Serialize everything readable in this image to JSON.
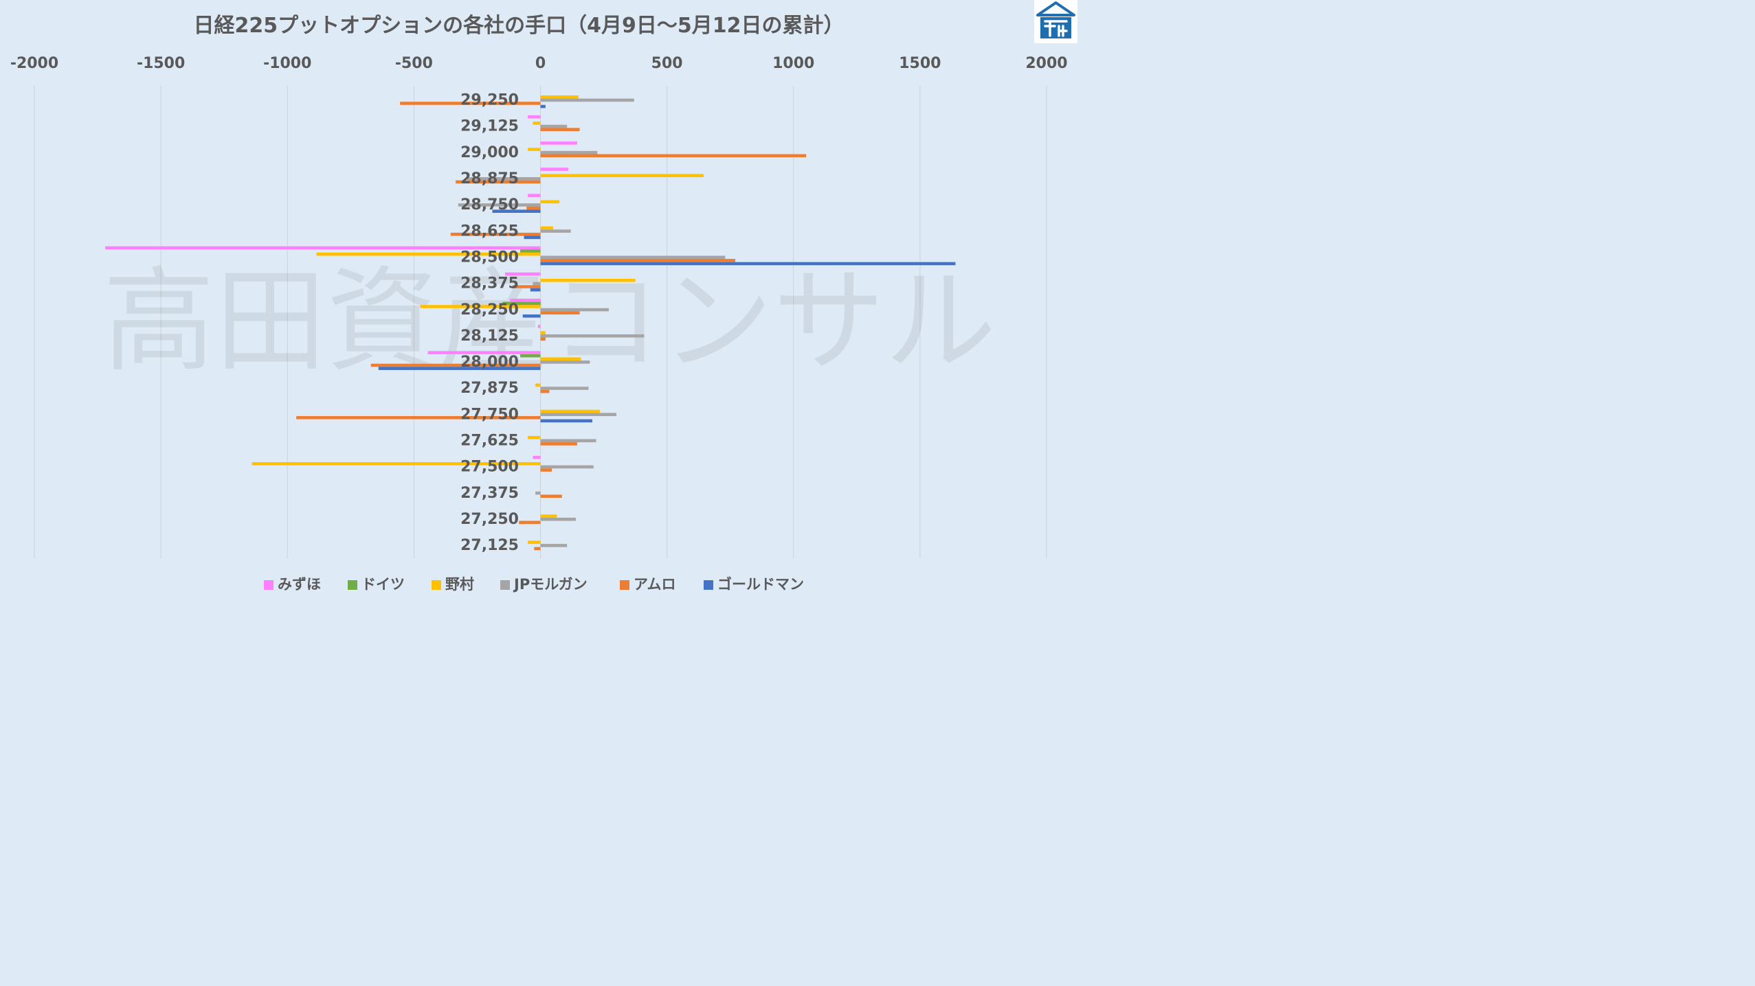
{
  "chart_data": {
    "type": "bar",
    "orientation": "horizontal",
    "title": "日経225プットオプションの各社の手口（4月9日～5月12日の累計）",
    "xlim": [
      -2000,
      2000
    ],
    "x_ticks": [
      "-2000",
      "-1500",
      "-1000",
      "-500",
      "0",
      "500",
      "1000",
      "1500",
      "2000"
    ],
    "x_tick_values": [
      -2000,
      -1500,
      -1000,
      -500,
      0,
      500,
      1000,
      1500,
      2000
    ],
    "categories": [
      "29,250",
      "29,125",
      "29,000",
      "28,875",
      "28,750",
      "28,625",
      "28,500",
      "28,375",
      "28,250",
      "28,125",
      "28,000",
      "27,875",
      "27,750",
      "27,625",
      "27,500",
      "27,375",
      "27,250",
      "27,125"
    ],
    "series": [
      {
        "name": "みずほ",
        "color": "#ff80ff",
        "values": [
          0,
          -50,
          145,
          110,
          -50,
          0,
          -1720,
          -140,
          -120,
          -10,
          -445,
          0,
          0,
          0,
          -30,
          0,
          0,
          0
        ]
      },
      {
        "name": "ドイツ",
        "color": "#70ad47",
        "values": [
          0,
          0,
          0,
          0,
          0,
          0,
          -80,
          0,
          -150,
          0,
          -80,
          0,
          0,
          0,
          0,
          0,
          0,
          0
        ]
      },
      {
        "name": "野村",
        "color": "#ffc000",
        "values": [
          150,
          -30,
          -50,
          645,
          75,
          50,
          -885,
          375,
          -475,
          20,
          160,
          -20,
          235,
          -50,
          -1140,
          0,
          65,
          -50
        ]
      },
      {
        "name": "JPモルガン",
        "color": "#a5a5a5",
        "values": [
          370,
          105,
          225,
          -290,
          -325,
          120,
          730,
          -30,
          270,
          410,
          195,
          190,
          300,
          220,
          210,
          -20,
          140,
          105
        ]
      },
      {
        "name": "アムロ",
        "color": "#ed7d31",
        "values": [
          -555,
          155,
          1050,
          -335,
          -55,
          -355,
          770,
          -110,
          155,
          20,
          -670,
          35,
          -965,
          145,
          45,
          85,
          -85,
          -25
        ]
      },
      {
        "name": "ゴールドマン",
        "color": "#4472c4",
        "values": [
          20,
          0,
          0,
          0,
          -190,
          -65,
          1640,
          -40,
          -70,
          0,
          -640,
          0,
          205,
          0,
          0,
          0,
          0,
          0
        ]
      }
    ],
    "legend_position": "bottom",
    "grid": "vertical",
    "watermark": "高田資産コンサル"
  },
  "logo": {
    "name": "takada-logo-icon",
    "color": "#1f6fb0"
  }
}
